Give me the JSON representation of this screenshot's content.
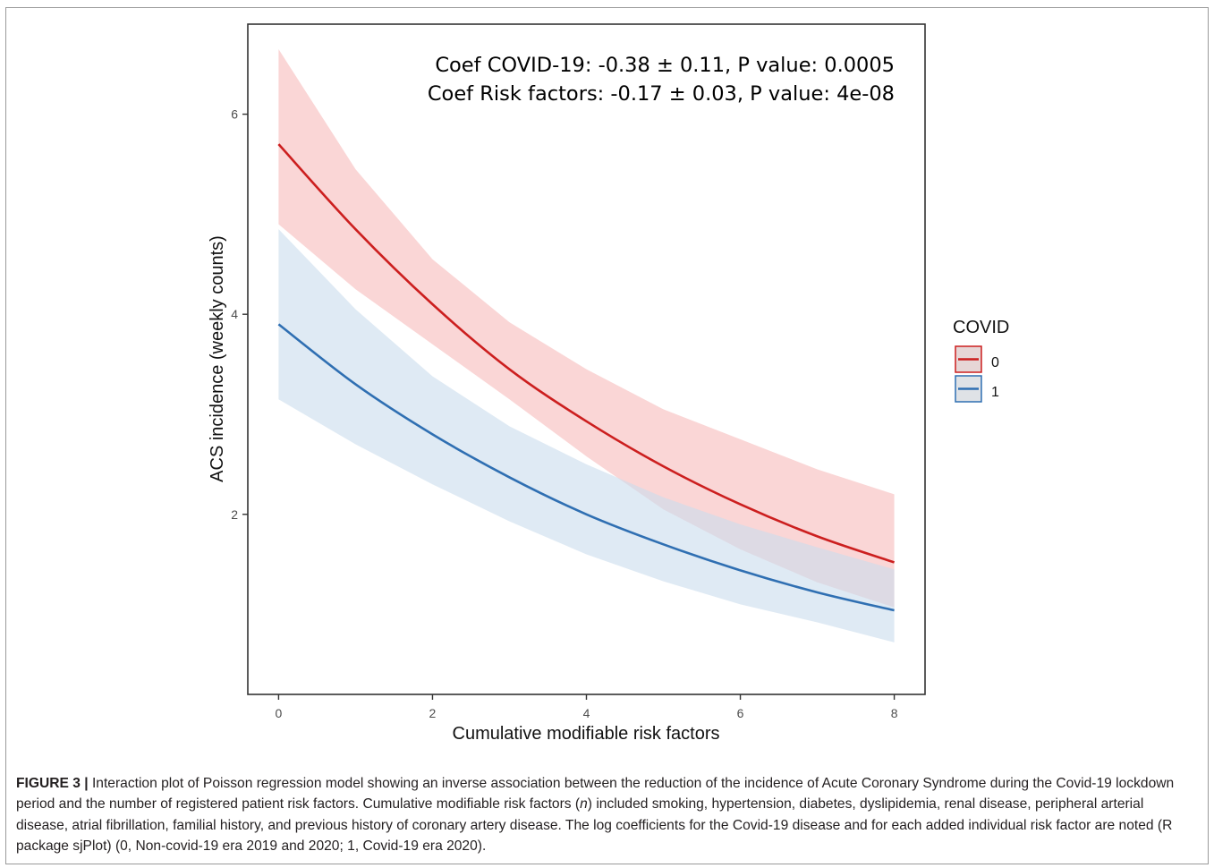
{
  "chart_data": {
    "type": "line",
    "x": [
      0,
      1,
      2,
      3,
      4,
      5,
      6,
      7,
      8
    ],
    "xlabel": "Cumulative modifiable risk factors",
    "ylabel": "ACS incidence (weekly counts)",
    "xlim": [
      -0.4,
      8.4
    ],
    "ylim": [
      0.2,
      6.9
    ],
    "xticks": [
      0,
      2,
      4,
      6,
      8
    ],
    "yticks": [
      2,
      4,
      6
    ],
    "grid": false,
    "annotations": [
      "Coef COVID-19: -0.38 ± 0.11, P value: 0.0005",
      "Coef Risk factors: -0.17 ± 0.03, P value: 4e-08"
    ],
    "legend": {
      "title": "COVID",
      "placement": "right"
    },
    "series": [
      {
        "name": "0",
        "color": "#cc1f1f",
        "fill": "#f8c4c4",
        "values": [
          5.7,
          4.85,
          4.1,
          3.45,
          2.93,
          2.48,
          2.1,
          1.78,
          1.52
        ],
        "lower": [
          4.9,
          4.25,
          3.7,
          3.15,
          2.58,
          2.05,
          1.65,
          1.32,
          1.07
        ],
        "upper": [
          6.65,
          5.45,
          4.55,
          3.92,
          3.45,
          3.05,
          2.75,
          2.45,
          2.2
        ]
      },
      {
        "name": "1",
        "color": "#2f6fb2",
        "fill": "#c9dced",
        "values": [
          3.9,
          3.3,
          2.8,
          2.37,
          2.0,
          1.7,
          1.44,
          1.22,
          1.04
        ],
        "lower": [
          3.15,
          2.7,
          2.3,
          1.93,
          1.6,
          1.33,
          1.1,
          0.92,
          0.72
        ],
        "upper": [
          4.85,
          4.05,
          3.38,
          2.88,
          2.5,
          2.17,
          1.9,
          1.67,
          1.45
        ]
      }
    ]
  },
  "caption": {
    "label": "FIGURE 3 |",
    "text_part1": " Interaction plot of Poisson regression model showing an inverse association between the reduction of the incidence of Acute Coronary Syndrome during the Covid-19 lockdown period and the number of registered patient risk factors. Cumulative modifiable risk factors (",
    "n": "n",
    "text_part2": ") included smoking, hypertension, diabetes, dyslipidemia, renal disease, peripheral arterial disease, atrial fibrillation, familial history, and previous history of coronary artery disease. The log coefficients for the Covid-19 disease and for each added individual risk factor are noted (R package sjPlot) (0, Non-covid-19 era 2019 and 2020; 1, Covid-19 era 2020)."
  }
}
